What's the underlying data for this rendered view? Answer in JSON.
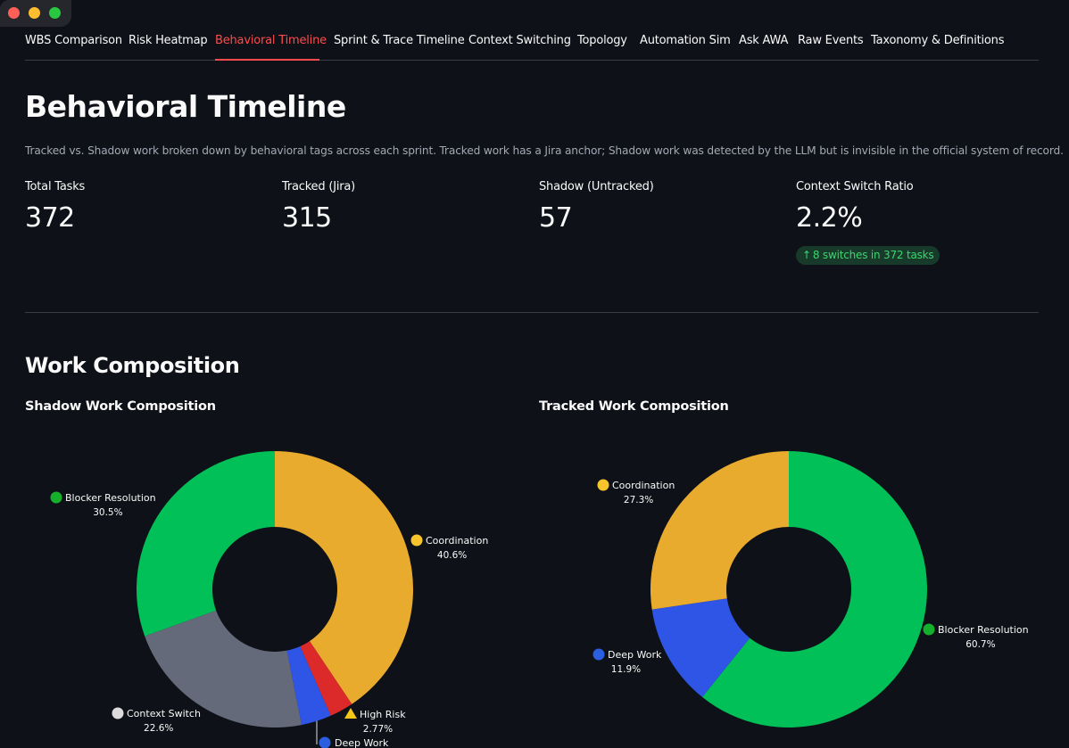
{
  "tabs": [
    {
      "label": "WBS Comparison",
      "active": false
    },
    {
      "label": "Risk Heatmap",
      "active": false
    },
    {
      "label": "Behavioral Timeline",
      "active": true
    },
    {
      "label": "Sprint & Trace Timeline",
      "active": false
    },
    {
      "label": "Context Switching",
      "active": false
    },
    {
      "label": "Topology",
      "active": false
    },
    {
      "label": "Automation Sim",
      "active": false
    },
    {
      "label": "Ask AWA",
      "active": false
    },
    {
      "label": "Raw Events",
      "active": false
    },
    {
      "label": "Taxonomy & Definitions",
      "active": false
    }
  ],
  "page": {
    "title": "Behavioral Timeline",
    "caption": "Tracked vs. Shadow work broken down by behavioral tags across each sprint. Tracked work has a Jira anchor; Shadow work was detected by the LLM but is invisible in the official system of record."
  },
  "metrics": [
    {
      "label": "Total Tasks",
      "value": "372"
    },
    {
      "label": "Tracked (Jira)",
      "value": "315"
    },
    {
      "label": "Shadow (Untracked)",
      "value": "57"
    },
    {
      "label": "Context Switch Ratio",
      "value": "2.2%",
      "delta": "8 switches in 372 tasks",
      "delta_icon": "arrow-up-icon"
    }
  ],
  "section": {
    "title": "Work Composition"
  },
  "chart_data": [
    {
      "type": "pie",
      "title": "Shadow Work Composition",
      "hole": true,
      "slices": [
        {
          "label": "Coordination",
          "percent": 40.6,
          "pct_text": "40.6%",
          "color": "#e9ab2d",
          "icon": "yellow-circle-icon"
        },
        {
          "label": "High Risk",
          "percent": 2.77,
          "pct_text": "2.77%",
          "color": "#dc2a2a",
          "icon": "warning-icon"
        },
        {
          "label": "Deep Work",
          "percent": 3.53,
          "pct_text": "",
          "color": "#2f55e6",
          "icon": "blue-circle-icon"
        },
        {
          "label": "Context Switch",
          "percent": 22.6,
          "pct_text": "22.6%",
          "color": "#646a7a",
          "icon": "white-circle-icon"
        },
        {
          "label": "Blocker Resolution",
          "percent": 30.5,
          "pct_text": "30.5%",
          "color": "#00c057",
          "icon": "green-circle-icon"
        }
      ]
    },
    {
      "type": "pie",
      "title": "Tracked Work Composition",
      "hole": true,
      "slices": [
        {
          "label": "Blocker Resolution",
          "percent": 60.7,
          "pct_text": "60.7%",
          "color": "#00c057",
          "icon": "green-circle-icon"
        },
        {
          "label": "Deep Work",
          "percent": 11.9,
          "pct_text": "11.9%",
          "color": "#2f55e6",
          "icon": "blue-circle-icon"
        },
        {
          "label": "Coordination",
          "percent": 27.3,
          "pct_text": "27.3%",
          "color": "#e9ab2d",
          "icon": "yellow-circle-icon"
        }
      ]
    }
  ]
}
